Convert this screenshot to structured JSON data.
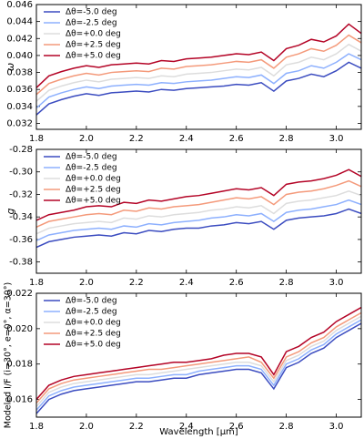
{
  "chart_data": [
    {
      "type": "line",
      "ylabel": "ω",
      "x": [
        1.8,
        1.85,
        1.9,
        1.95,
        2.0,
        2.05,
        2.1,
        2.15,
        2.2,
        2.25,
        2.3,
        2.35,
        2.4,
        2.45,
        2.5,
        2.55,
        2.6,
        2.65,
        2.7,
        2.75,
        2.8,
        2.85,
        2.9,
        2.95,
        3.0,
        3.05,
        3.1
      ],
      "xlim": [
        1.8,
        3.1
      ],
      "xticks": [
        1.8,
        {
          "value": 2,
          "label": "2.0"
        },
        2.2,
        2.4,
        2.6,
        2.8,
        {
          "value": 3,
          "label": "3.0"
        }
      ],
      "ylim": [
        0.0313,
        0.046
      ],
      "yticks": [
        0.032,
        0.034,
        0.036,
        0.038,
        {
          "value": 0.04,
          "label": "0.040"
        },
        0.042,
        0.044,
        0.046
      ],
      "legend": "upper left",
      "series": [
        {
          "name": "Δθ=-5.0 deg",
          "color": "#3b4cc0",
          "values": [
            0.033,
            0.0343,
            0.0348,
            0.0352,
            0.0355,
            0.0353,
            0.0356,
            0.0357,
            0.0358,
            0.0357,
            0.036,
            0.0359,
            0.0361,
            0.0362,
            0.0363,
            0.0364,
            0.0366,
            0.0365,
            0.0368,
            0.0358,
            0.037,
            0.0373,
            0.0378,
            0.0375,
            0.0382,
            0.0392,
            0.0385
          ]
        },
        {
          "name": "Δθ=-2.5 deg",
          "color": "#8db0fe",
          "values": [
            0.0338,
            0.0351,
            0.0356,
            0.036,
            0.0363,
            0.0361,
            0.0364,
            0.0365,
            0.0366,
            0.0365,
            0.0368,
            0.0367,
            0.0369,
            0.037,
            0.0371,
            0.0373,
            0.0375,
            0.0374,
            0.0377,
            0.0367,
            0.0379,
            0.0382,
            0.0388,
            0.0385,
            0.0392,
            0.0402,
            0.0395
          ]
        },
        {
          "name": "Δθ=+0.0 deg",
          "color": "#dddddd",
          "values": [
            0.0346,
            0.0359,
            0.0364,
            0.0368,
            0.0371,
            0.0369,
            0.0372,
            0.0373,
            0.0374,
            0.0373,
            0.0376,
            0.0375,
            0.0378,
            0.0379,
            0.038,
            0.0382,
            0.0384,
            0.0383,
            0.0386,
            0.0376,
            0.0389,
            0.0392,
            0.0398,
            0.0395,
            0.0402,
            0.0413,
            0.0405
          ]
        },
        {
          "name": "Δθ=+2.5 deg",
          "color": "#f49a7b",
          "values": [
            0.0354,
            0.0367,
            0.0372,
            0.0376,
            0.0379,
            0.0377,
            0.038,
            0.0381,
            0.0382,
            0.0381,
            0.0385,
            0.0384,
            0.0387,
            0.0388,
            0.0389,
            0.0391,
            0.0393,
            0.0392,
            0.0395,
            0.0385,
            0.0398,
            0.0402,
            0.0408,
            0.0405,
            0.0412,
            0.0424,
            0.0415
          ]
        },
        {
          "name": "Δθ=+5.0 deg",
          "color": "#b40426",
          "values": [
            0.0362,
            0.0376,
            0.0381,
            0.0385,
            0.0388,
            0.0386,
            0.0389,
            0.039,
            0.0391,
            0.039,
            0.0394,
            0.0393,
            0.0396,
            0.0397,
            0.0398,
            0.04,
            0.0402,
            0.0401,
            0.0404,
            0.0394,
            0.0408,
            0.0412,
            0.0419,
            0.0416,
            0.0423,
            0.0437,
            0.0426
          ]
        }
      ]
    },
    {
      "type": "line",
      "ylabel": "g",
      "x": [
        1.8,
        1.85,
        1.9,
        1.95,
        2.0,
        2.05,
        2.1,
        2.15,
        2.2,
        2.25,
        2.3,
        2.35,
        2.4,
        2.45,
        2.5,
        2.55,
        2.6,
        2.65,
        2.7,
        2.75,
        2.8,
        2.85,
        2.9,
        2.95,
        3.0,
        3.05,
        3.1
      ],
      "xlim": [
        1.8,
        3.1
      ],
      "xticks": [
        1.8,
        {
          "value": 2,
          "label": "2.0"
        },
        2.2,
        2.4,
        2.6,
        2.8,
        {
          "value": 3,
          "label": "3.0"
        }
      ],
      "ylim": [
        -0.39,
        -0.28
      ],
      "yticks": [
        -0.28,
        {
          "value": -0.3,
          "label": "-0.30"
        },
        -0.32,
        -0.34,
        -0.36,
        -0.38
      ],
      "legend": "upper left",
      "series": [
        {
          "name": "Δθ=-5.0 deg",
          "color": "#3b4cc0",
          "values": [
            -0.367,
            -0.362,
            -0.36,
            -0.358,
            -0.357,
            -0.356,
            -0.357,
            -0.354,
            -0.355,
            -0.352,
            -0.353,
            -0.351,
            -0.35,
            -0.35,
            -0.348,
            -0.347,
            -0.345,
            -0.346,
            -0.344,
            -0.351,
            -0.343,
            -0.341,
            -0.34,
            -0.339,
            -0.337,
            -0.333,
            -0.337
          ]
        },
        {
          "name": "Δθ=-2.5 deg",
          "color": "#8db0fe",
          "values": [
            -0.361,
            -0.356,
            -0.354,
            -0.352,
            -0.351,
            -0.35,
            -0.351,
            -0.348,
            -0.349,
            -0.346,
            -0.347,
            -0.345,
            -0.344,
            -0.343,
            -0.341,
            -0.34,
            -0.338,
            -0.339,
            -0.337,
            -0.344,
            -0.336,
            -0.334,
            -0.333,
            -0.331,
            -0.329,
            -0.325,
            -0.329
          ]
        },
        {
          "name": "Δθ=+0.0 deg",
          "color": "#dddddd",
          "values": [
            -0.355,
            -0.35,
            -0.348,
            -0.346,
            -0.345,
            -0.344,
            -0.345,
            -0.341,
            -0.342,
            -0.339,
            -0.34,
            -0.338,
            -0.337,
            -0.336,
            -0.334,
            -0.333,
            -0.331,
            -0.332,
            -0.33,
            -0.337,
            -0.328,
            -0.326,
            -0.325,
            -0.323,
            -0.321,
            -0.317,
            -0.321
          ]
        },
        {
          "name": "Δθ=+2.5 deg",
          "color": "#f49a7b",
          "values": [
            -0.349,
            -0.344,
            -0.342,
            -0.34,
            -0.338,
            -0.337,
            -0.338,
            -0.334,
            -0.335,
            -0.332,
            -0.333,
            -0.331,
            -0.33,
            -0.329,
            -0.327,
            -0.325,
            -0.323,
            -0.324,
            -0.322,
            -0.329,
            -0.32,
            -0.318,
            -0.317,
            -0.315,
            -0.312,
            -0.308,
            -0.313
          ]
        },
        {
          "name": "Δθ=+5.0 deg",
          "color": "#b40426",
          "values": [
            -0.343,
            -0.338,
            -0.336,
            -0.334,
            -0.331,
            -0.33,
            -0.331,
            -0.327,
            -0.328,
            -0.325,
            -0.326,
            -0.324,
            -0.322,
            -0.321,
            -0.319,
            -0.317,
            -0.315,
            -0.316,
            -0.314,
            -0.321,
            -0.311,
            -0.309,
            -0.308,
            -0.306,
            -0.303,
            -0.298,
            -0.304
          ]
        }
      ]
    },
    {
      "type": "line",
      "ylabel": "Modeled I/F (i=30°, e=0°, α=30°)",
      "xlabel": "Wavelength [μm]",
      "x": [
        1.8,
        1.85,
        1.9,
        1.95,
        2.0,
        2.05,
        2.1,
        2.15,
        2.2,
        2.25,
        2.3,
        2.35,
        2.4,
        2.45,
        2.5,
        2.55,
        2.6,
        2.65,
        2.7,
        2.75,
        2.8,
        2.85,
        2.9,
        2.95,
        3.0,
        3.05,
        3.1
      ],
      "xlim": [
        1.8,
        3.1
      ],
      "xticks": [
        1.8,
        {
          "value": 2,
          "label": "2.0"
        },
        2.2,
        2.4,
        2.6,
        2.8,
        {
          "value": 3,
          "label": "3.0"
        }
      ],
      "ylim": [
        0.015,
        0.022
      ],
      "yticks": [
        0.016,
        0.018,
        {
          "value": 0.02,
          "label": "0.020"
        },
        0.022
      ],
      "legend": "upper left",
      "series": [
        {
          "name": "Δθ=-5.0 deg",
          "color": "#3b4cc0",
          "values": [
            0.0152,
            0.016,
            0.0163,
            0.0165,
            0.0166,
            0.0167,
            0.0168,
            0.0169,
            0.017,
            0.017,
            0.0171,
            0.0172,
            0.0172,
            0.0174,
            0.0175,
            0.0176,
            0.0177,
            0.0177,
            0.0175,
            0.0166,
            0.0178,
            0.0181,
            0.0186,
            0.0189,
            0.0195,
            0.0199,
            0.0203
          ]
        },
        {
          "name": "Δθ=-2.5 deg",
          "color": "#8db0fe",
          "values": [
            0.0154,
            0.0162,
            0.0165,
            0.0167,
            0.0168,
            0.0169,
            0.017,
            0.0171,
            0.0172,
            0.0172,
            0.0173,
            0.0174,
            0.0174,
            0.0176,
            0.0177,
            0.0178,
            0.0179,
            0.0179,
            0.0177,
            0.0168,
            0.018,
            0.0183,
            0.0188,
            0.0191,
            0.0197,
            0.0201,
            0.0205
          ]
        },
        {
          "name": "Δθ=+0.0 deg",
          "color": "#dddddd",
          "values": [
            0.0156,
            0.0164,
            0.0167,
            0.0169,
            0.017,
            0.0171,
            0.0172,
            0.0173,
            0.0174,
            0.0174,
            0.0175,
            0.0176,
            0.0177,
            0.0178,
            0.0179,
            0.018,
            0.0181,
            0.0181,
            0.0179,
            0.017,
            0.0182,
            0.0185,
            0.019,
            0.0193,
            0.0199,
            0.0203,
            0.0207
          ]
        },
        {
          "name": "Δθ=+2.5 deg",
          "color": "#f49a7b",
          "values": [
            0.0158,
            0.0166,
            0.0169,
            0.0171,
            0.0172,
            0.0173,
            0.0174,
            0.0175,
            0.0176,
            0.0177,
            0.0177,
            0.0178,
            0.0179,
            0.018,
            0.0181,
            0.0182,
            0.0183,
            0.0184,
            0.0181,
            0.0172,
            0.0184,
            0.0187,
            0.0192,
            0.0195,
            0.0201,
            0.0205,
            0.0209
          ]
        },
        {
          "name": "Δθ=+5.0 deg",
          "color": "#b40426",
          "values": [
            0.016,
            0.0168,
            0.0171,
            0.0173,
            0.0174,
            0.0175,
            0.0176,
            0.0177,
            0.0178,
            0.0179,
            0.018,
            0.0181,
            0.0181,
            0.0182,
            0.0183,
            0.0185,
            0.0186,
            0.0186,
            0.0184,
            0.0174,
            0.0187,
            0.019,
            0.0195,
            0.0198,
            0.0204,
            0.0208,
            0.0212
          ]
        }
      ]
    }
  ]
}
